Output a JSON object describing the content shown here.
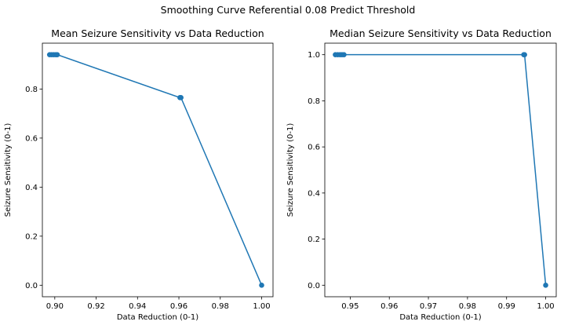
{
  "figure": {
    "suptitle": "Smoothing Curve Referential 0.08 Predict Threshold"
  },
  "chart_data": [
    {
      "type": "line",
      "title": "Mean Seizure Sensitivity vs Data Reduction",
      "xlabel": "Data Reduction (0-1)",
      "ylabel": "Seizure Sensitivity (0-1)",
      "xlim": [
        0.894,
        1.0055
      ],
      "ylim": [
        -0.047,
        0.987
      ],
      "xticks": [
        0.9,
        0.92,
        0.94,
        0.96,
        0.98,
        1.0
      ],
      "xtick_labels": [
        "0.90",
        "0.92",
        "0.94",
        "0.96",
        "0.98",
        "1.00"
      ],
      "yticks": [
        0.0,
        0.2,
        0.4,
        0.6,
        0.8
      ],
      "ytick_labels": [
        "0.0",
        "0.2",
        "0.4",
        "0.6",
        "0.8"
      ],
      "grid": false,
      "color": "#1f77b4",
      "markers": "o",
      "points": [
        {
          "x": 0.8975,
          "y": 0.94
        },
        {
          "x": 0.8985,
          "y": 0.94
        },
        {
          "x": 0.8995,
          "y": 0.94
        },
        {
          "x": 0.9005,
          "y": 0.94
        },
        {
          "x": 0.9012,
          "y": 0.94
        },
        {
          "x": 0.9605,
          "y": 0.765
        },
        {
          "x": 0.961,
          "y": 0.765
        },
        {
          "x": 1.0,
          "y": 0.0
        }
      ]
    },
    {
      "type": "line",
      "title": "Median Seizure Sensitivity vs Data Reduction",
      "xlabel": "Data Reduction (0-1)",
      "ylabel": "Seizure Sensitivity (0-1)",
      "xlim": [
        0.9435,
        1.0027
      ],
      "ylim": [
        -0.05,
        1.05
      ],
      "xticks": [
        0.95,
        0.96,
        0.97,
        0.98,
        0.99,
        1.0
      ],
      "xtick_labels": [
        "0.95",
        "0.96",
        "0.97",
        "0.98",
        "0.99",
        "1.00"
      ],
      "yticks": [
        0.0,
        0.2,
        0.4,
        0.6,
        0.8,
        1.0
      ],
      "ytick_labels": [
        "0.0",
        "0.2",
        "0.4",
        "0.6",
        "0.8",
        "1.0"
      ],
      "grid": false,
      "color": "#1f77b4",
      "markers": "o",
      "points": [
        {
          "x": 0.9462,
          "y": 1.0
        },
        {
          "x": 0.9468,
          "y": 1.0
        },
        {
          "x": 0.9474,
          "y": 1.0
        },
        {
          "x": 0.9479,
          "y": 1.0
        },
        {
          "x": 0.9484,
          "y": 1.0
        },
        {
          "x": 0.9944,
          "y": 1.0
        },
        {
          "x": 0.9946,
          "y": 1.0
        },
        {
          "x": 1.0,
          "y": 0.0
        }
      ]
    }
  ]
}
